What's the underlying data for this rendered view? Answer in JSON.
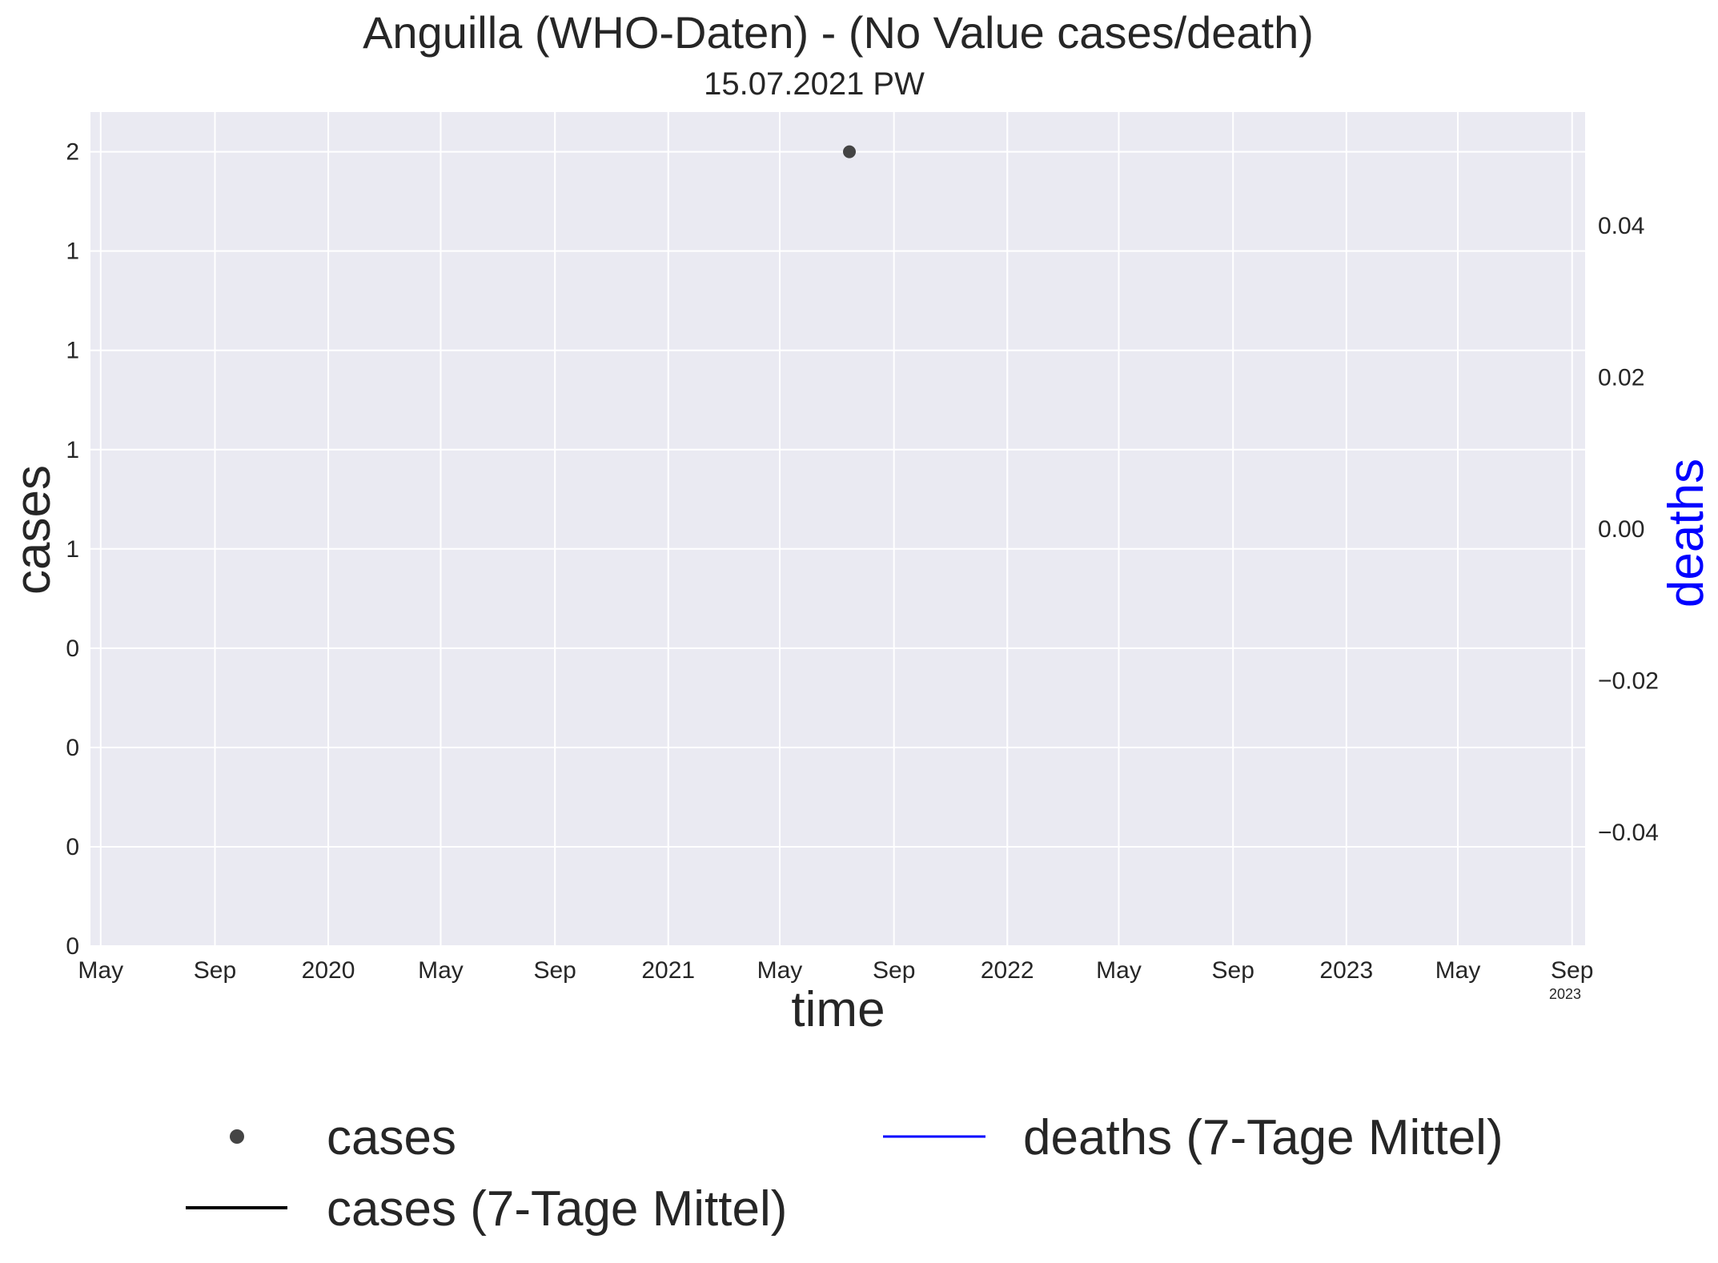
{
  "chart_data": {
    "type": "scatter",
    "title": "Anguilla (WHO-Daten) - (No Value cases/death)",
    "subtitle": "15.07.2021 PW",
    "xlabel": "time",
    "ylabel": "cases",
    "ylabel_right": "deaths",
    "x_range": [
      "2019-04-20",
      "2023-09-15"
    ],
    "x_ticks": [
      {
        "date": "2019-05-01",
        "label": "May"
      },
      {
        "date": "2019-09-01",
        "label": "Sep"
      },
      {
        "date": "2020-01-01",
        "label": "2020"
      },
      {
        "date": "2020-05-01",
        "label": "May"
      },
      {
        "date": "2020-09-01",
        "label": "Sep"
      },
      {
        "date": "2021-01-01",
        "label": "2021"
      },
      {
        "date": "2021-05-01",
        "label": "May"
      },
      {
        "date": "2021-09-01",
        "label": "Sep"
      },
      {
        "date": "2022-01-01",
        "label": "2022"
      },
      {
        "date": "2022-05-01",
        "label": "May"
      },
      {
        "date": "2022-09-01",
        "label": "Sep"
      },
      {
        "date": "2023-01-01",
        "label": "2023"
      },
      {
        "date": "2023-05-01",
        "label": "May"
      },
      {
        "date": "2023-09-01",
        "label": "Sep"
      }
    ],
    "x_offset_label": "2023",
    "ylim_left": [
      0,
      2.1
    ],
    "y_ticks_left": [
      {
        "value": 0.0,
        "label": "0"
      },
      {
        "value": 0.25,
        "label": "0"
      },
      {
        "value": 0.5,
        "label": "0"
      },
      {
        "value": 0.75,
        "label": "0"
      },
      {
        "value": 1.0,
        "label": "1"
      },
      {
        "value": 1.25,
        "label": "1"
      },
      {
        "value": 1.5,
        "label": "1"
      },
      {
        "value": 1.75,
        "label": "1"
      },
      {
        "value": 2.0,
        "label": "2"
      }
    ],
    "ylim_right": [
      -0.055,
      0.055
    ],
    "y_ticks_right": [
      {
        "value": 0.04,
        "label": "0.04"
      },
      {
        "value": 0.02,
        "label": "0.02"
      },
      {
        "value": 0.0,
        "label": "0.00"
      },
      {
        "value": -0.02,
        "label": "−0.02"
      },
      {
        "value": -0.04,
        "label": "−0.04"
      }
    ],
    "grid": true,
    "series": [
      {
        "name": "cases",
        "kind": "points",
        "color": "#444444",
        "points": [
          {
            "x": "2021-07-15",
            "y": 2
          }
        ]
      },
      {
        "name": "cases (7-Tage Mittel)",
        "kind": "line",
        "color": "#000000",
        "points": []
      },
      {
        "name": "deaths (7-Tage Mittel)",
        "kind": "line",
        "color": "#0000ff",
        "points": []
      }
    ],
    "legend_position": "bottom",
    "colors": {
      "plot_background": "#eaeaf2",
      "grid": "#ffffff",
      "right_axis_label": "#0000ff"
    }
  }
}
